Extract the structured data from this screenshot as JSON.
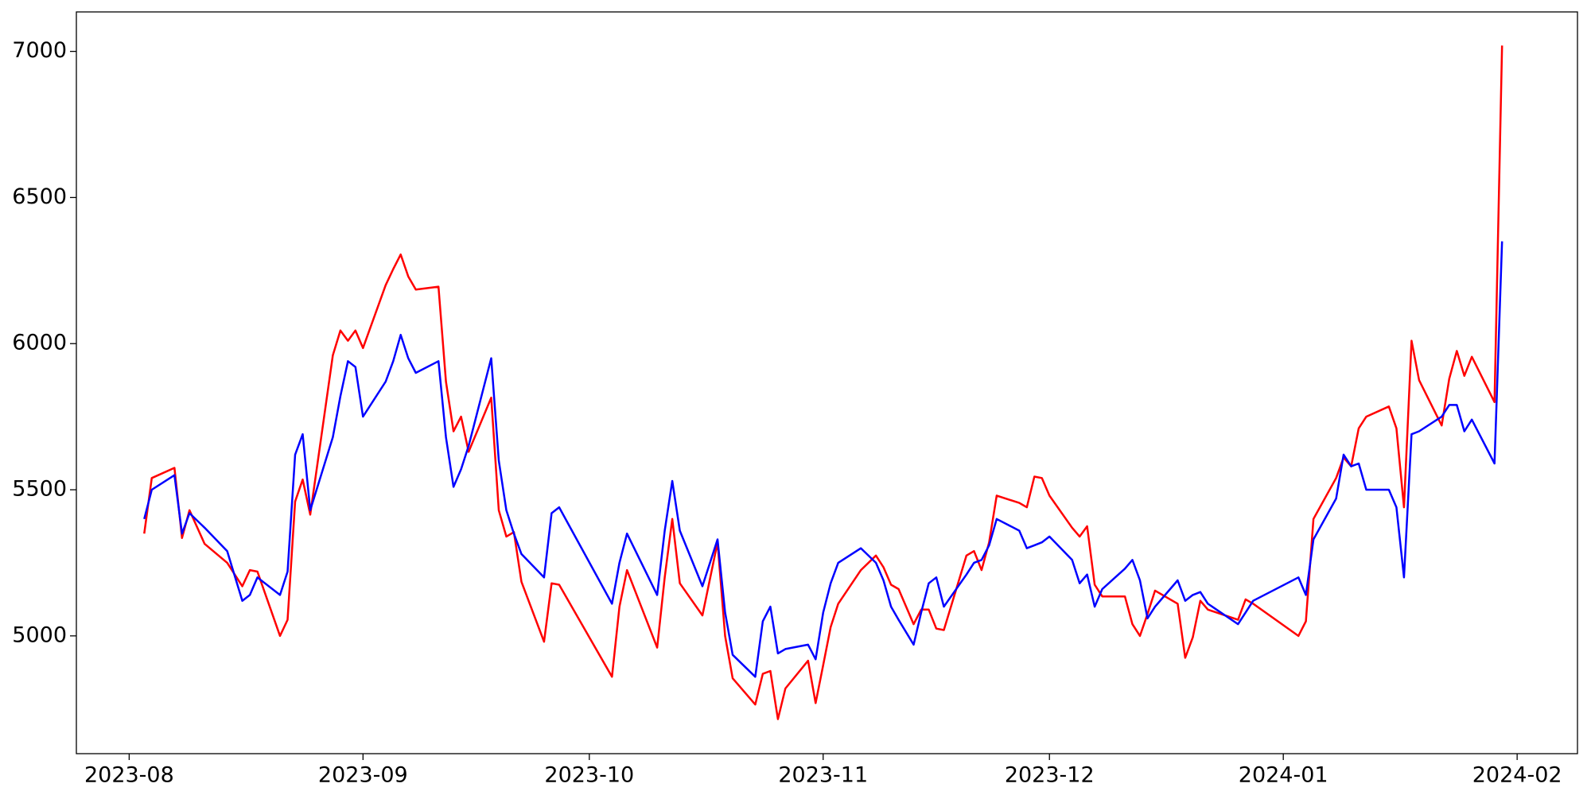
{
  "chart_data": {
    "type": "line",
    "x": [
      19572,
      19573,
      19576,
      19577,
      19578,
      19580,
      19583,
      19585,
      19586,
      19587,
      19590,
      19591,
      19592,
      19593,
      19594,
      19597,
      19598,
      19599,
      19600,
      19601,
      19604,
      19605,
      19606,
      19607,
      19608,
      19611,
      19612,
      19613,
      19614,
      19615,
      19618,
      19619,
      19620,
      19621,
      19622,
      19625,
      19626,
      19627,
      19634,
      19635,
      19636,
      19640,
      19641,
      19642,
      19643,
      19646,
      19648,
      19649,
      19650,
      19653,
      19654,
      19655,
      19656,
      19657,
      19660,
      19661,
      19662,
      19663,
      19664,
      19667,
      19669,
      19670,
      19671,
      19672,
      19674,
      19675,
      19676,
      19677,
      19678,
      19681,
      19682,
      19683,
      19684,
      19685,
      19688,
      19689,
      19690,
      19691,
      19692,
      19695,
      19696,
      19697,
      19698,
      19699,
      19702,
      19703,
      19704,
      19705,
      19706,
      19709,
      19710,
      19711,
      19712,
      19713,
      19717,
      19718,
      19719,
      19725,
      19726,
      19727,
      19730,
      19731,
      19732,
      19733,
      19734,
      19737,
      19738,
      19739,
      19740,
      19741,
      19744,
      19745,
      19746,
      19747,
      19748,
      19751,
      19752
    ],
    "series": [
      {
        "color": "#ff0000",
        "values": [
          5350,
          5540,
          5575,
          5335,
          5430,
          5315,
          5250,
          5170,
          5225,
          5220,
          5000,
          5055,
          5460,
          5535,
          5415,
          5960,
          6045,
          6010,
          6045,
          5985,
          6200,
          6255,
          6305,
          6230,
          6185,
          6195,
          5870,
          5700,
          5750,
          5630,
          5815,
          5430,
          5340,
          5355,
          5185,
          4980,
          5180,
          5175,
          4860,
          5100,
          5225,
          4960,
          5200,
          5400,
          5180,
          5070,
          5320,
          5000,
          4855,
          4765,
          4870,
          4880,
          4715,
          4820,
          4915,
          4770,
          4900,
          5030,
          5110,
          5225,
          5275,
          5235,
          5175,
          5160,
          5040,
          5090,
          5090,
          5025,
          5020,
          5275,
          5290,
          5225,
          5320,
          5480,
          5455,
          5440,
          5545,
          5540,
          5480,
          5370,
          5340,
          5375,
          5175,
          5135,
          5135,
          5040,
          5000,
          5075,
          5155,
          5110,
          4925,
          4995,
          5120,
          5090,
          5055,
          5125,
          5110,
          5000,
          5050,
          5400,
          5540,
          5610,
          5580,
          5710,
          5750,
          5785,
          5710,
          5440,
          6010,
          5875,
          5720,
          5880,
          5975,
          5890,
          5955,
          5800,
          7020
        ]
      },
      {
        "color": "#0000ff",
        "values": [
          5400,
          5500,
          5550,
          5350,
          5420,
          5370,
          5290,
          5120,
          5140,
          5200,
          5140,
          5220,
          5620,
          5690,
          5430,
          5680,
          5820,
          5940,
          5920,
          5750,
          5870,
          5940,
          6030,
          5950,
          5900,
          5940,
          5680,
          5510,
          5570,
          5650,
          5950,
          5600,
          5430,
          5350,
          5280,
          5200,
          5420,
          5440,
          5110,
          5250,
          5350,
          5140,
          5360,
          5530,
          5360,
          5170,
          5330,
          5080,
          4935,
          4860,
          5050,
          5100,
          4940,
          4955,
          4970,
          4920,
          5080,
          5180,
          5250,
          5300,
          5250,
          5190,
          5100,
          5055,
          4970,
          5080,
          5180,
          5200,
          5100,
          5210,
          5250,
          5260,
          5310,
          5400,
          5360,
          5300,
          5310,
          5320,
          5340,
          5260,
          5180,
          5210,
          5100,
          5160,
          5230,
          5260,
          5190,
          5060,
          5100,
          5190,
          5120,
          5140,
          5150,
          5110,
          5040,
          5080,
          5120,
          5200,
          5140,
          5330,
          5470,
          5620,
          5580,
          5590,
          5500,
          5500,
          5440,
          5200,
          5690,
          5700,
          5750,
          5790,
          5790,
          5700,
          5740,
          5590,
          6350
        ]
      }
    ],
    "xlim": [
      19563,
      19762
    ],
    "ylim": [
      4597,
      7135
    ],
    "xticks": [
      {
        "value": 19570,
        "label": "2023-08"
      },
      {
        "value": 19601,
        "label": "2023-09"
      },
      {
        "value": 19631,
        "label": "2023-10"
      },
      {
        "value": 19662,
        "label": "2023-11"
      },
      {
        "value": 19692,
        "label": "2023-12"
      },
      {
        "value": 19723,
        "label": "2024-01"
      },
      {
        "value": 19754,
        "label": "2024-02"
      }
    ],
    "yticks": [
      5000,
      5500,
      6000,
      6500,
      7000
    ]
  }
}
